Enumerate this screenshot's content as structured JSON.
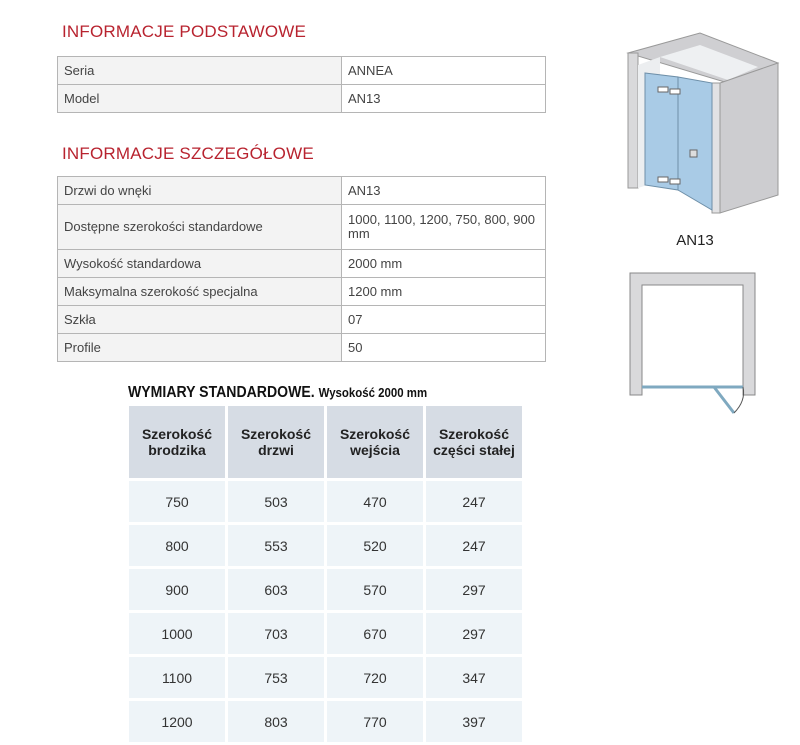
{
  "basic": {
    "heading": "INFORMACJE PODSTAWOWE",
    "rows": [
      {
        "label": "Seria",
        "value": "ANNEA"
      },
      {
        "label": "Model",
        "value": "AN13"
      }
    ]
  },
  "details": {
    "heading": "INFORMACJE SZCZEGÓŁOWE",
    "rows": [
      {
        "label": "Drzwi do wnęki",
        "value": "AN13"
      },
      {
        "label": "Dostępne szerokości standardowe",
        "value": "1000, 1100, 1200, 750, 800, 900 mm"
      },
      {
        "label": "Wysokość standardowa",
        "value": "2000 mm"
      },
      {
        "label": "Maksymalna szerokość specjalna",
        "value": "1200 mm"
      },
      {
        "label": "Szkła",
        "value": "07"
      },
      {
        "label": "Profile",
        "value": "50"
      }
    ]
  },
  "dimensions": {
    "title": "WYMIARY STANDARDOWE.",
    "subtitle": "Wysokość 2000 mm",
    "headers": [
      "Szerokość brodzika",
      "Szerokość drzwi",
      "Szerokość wejścia",
      "Szerokość części stałej"
    ],
    "rows": [
      [
        "750",
        "503",
        "470",
        "247"
      ],
      [
        "800",
        "553",
        "520",
        "247"
      ],
      [
        "900",
        "603",
        "570",
        "297"
      ],
      [
        "1000",
        "703",
        "670",
        "297"
      ],
      [
        "1100",
        "753",
        "720",
        "347"
      ],
      [
        "1200",
        "803",
        "770",
        "397"
      ]
    ]
  },
  "figure": {
    "caption": "AN13",
    "glass_color": "#a9cbe6",
    "wall_color": "#d9d9db"
  }
}
